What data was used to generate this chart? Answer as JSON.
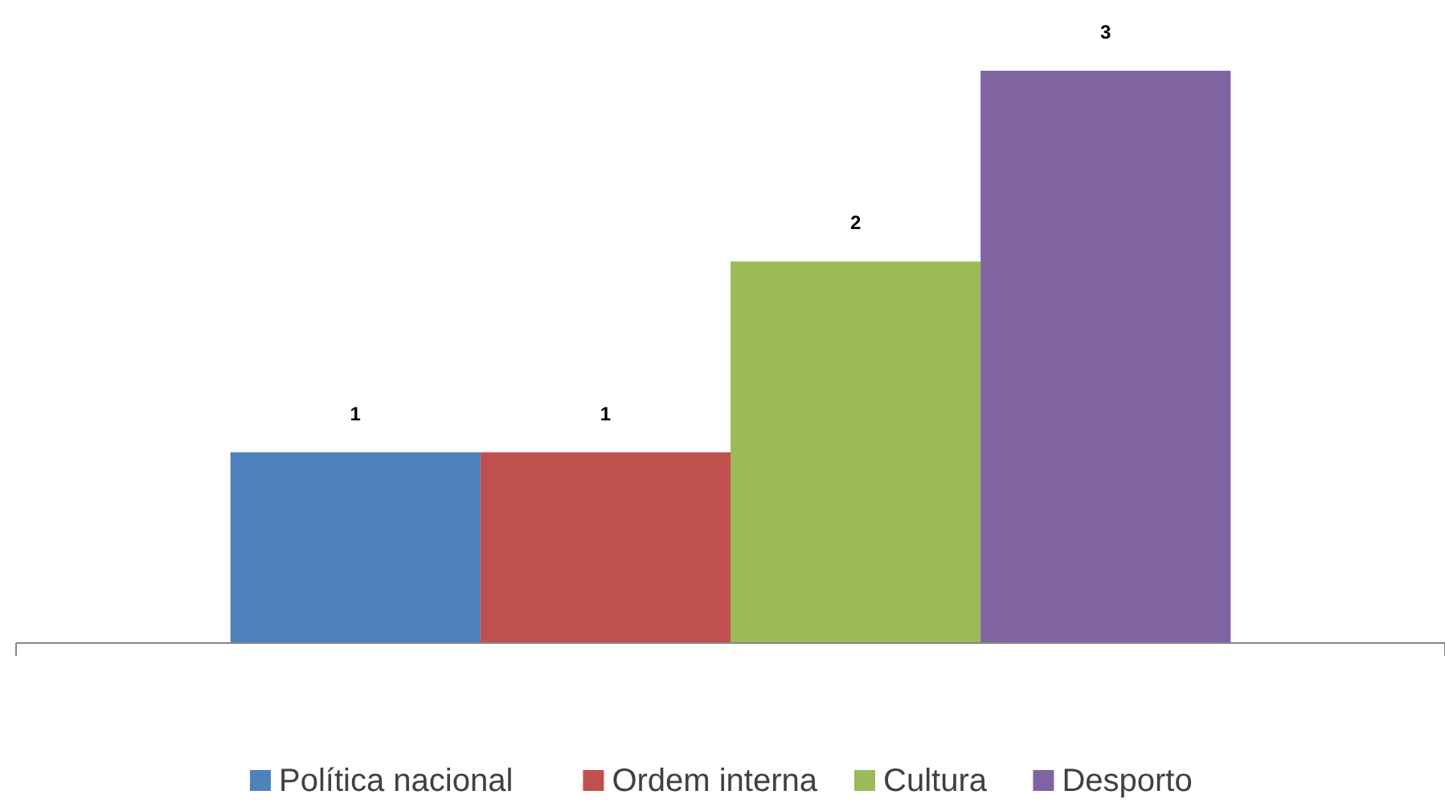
{
  "chart_data": {
    "type": "bar",
    "categories": [
      null
    ],
    "series": [
      {
        "name": "Política nacional",
        "color": "#4f81bd",
        "values": [
          1
        ]
      },
      {
        "name": "Ordem interna",
        "color": "#c0504d",
        "values": [
          1
        ]
      },
      {
        "name": "Cultura",
        "color": "#9bbb59",
        "values": [
          2
        ]
      },
      {
        "name": "Desporto",
        "color": "#8064a2",
        "values": [
          3
        ]
      }
    ],
    "data_labels": true,
    "legend": "bottom"
  }
}
